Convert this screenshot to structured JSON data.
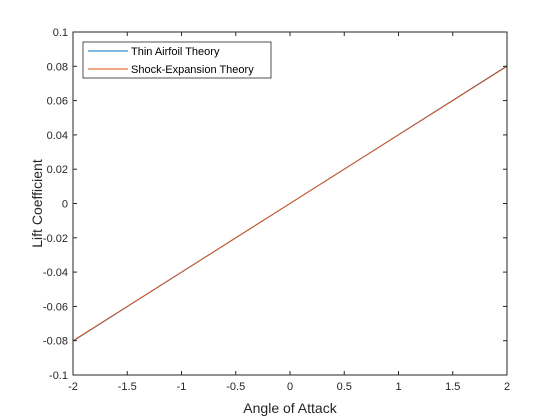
{
  "chart_data": {
    "type": "line",
    "title": "",
    "xlabel": "Angle of Attack",
    "ylabel": "Lift Coefficient",
    "xlim": [
      -2,
      2
    ],
    "ylim": [
      -0.1,
      0.1
    ],
    "xticks": [
      -2,
      -1.5,
      -1,
      -0.5,
      0,
      0.5,
      1,
      1.5,
      2
    ],
    "yticks": [
      -0.1,
      -0.08,
      -0.06,
      -0.04,
      -0.02,
      0,
      0.02,
      0.04,
      0.06,
      0.08,
      0.1
    ],
    "xtick_labels": [
      "-2",
      "-1.5",
      "-1",
      "-0.5",
      "0",
      "0.5",
      "1",
      "1.5",
      "2"
    ],
    "ytick_labels": [
      "-0.1",
      "-0.08",
      "-0.06",
      "-0.04",
      "-0.02",
      "0",
      "0.02",
      "0.04",
      "0.06",
      "0.08",
      "0.1"
    ],
    "grid": false,
    "legend_position": "top-left",
    "series": [
      {
        "name": "Thin Airfoil Theory",
        "color": "#0072BD",
        "x": [
          -2,
          2
        ],
        "y": [
          -0.0802,
          0.0802
        ]
      },
      {
        "name": "Shock-Expansion Theory",
        "color": "#D95319",
        "x": [
          -2,
          2
        ],
        "y": [
          -0.08,
          0.08
        ]
      }
    ]
  }
}
